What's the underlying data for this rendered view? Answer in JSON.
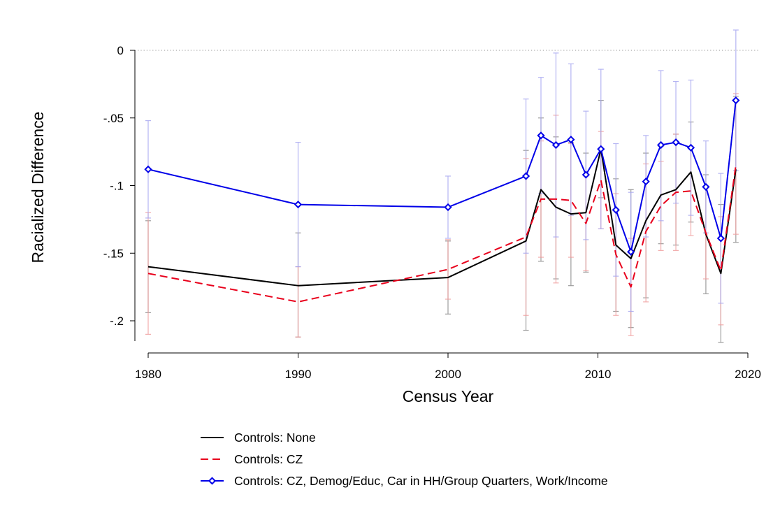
{
  "chart_data": {
    "type": "line",
    "xlabel": "Census Year",
    "ylabel": "Racialized Difference",
    "xlim": [
      1980,
      2020
    ],
    "ylim": [
      -0.22,
      0.0
    ],
    "xticks": [
      1980,
      1990,
      2000,
      2010,
      2020
    ],
    "xtick_labels": [
      "1980",
      "1990",
      "2000",
      "2010",
      "2020"
    ],
    "yticks": [
      0,
      -0.05,
      -0.1,
      -0.15,
      -0.2
    ],
    "ytick_labels": [
      "0",
      "-.05",
      "-.1",
      "-.15",
      "-.2"
    ],
    "reference_line": {
      "y": 0,
      "style": "dotted"
    },
    "legend_position": "bottom",
    "series": [
      {
        "name": "Controls: None",
        "color": "#000000",
        "errorbar_color": "#8c8c8c",
        "line_style": "solid",
        "marker": "none",
        "x": [
          1980,
          1990,
          2000,
          2005.2,
          2006.2,
          2007.2,
          2008.2,
          2009.2,
          2010.2,
          2011.2,
          2012.2,
          2013.2,
          2014.2,
          2015.2,
          2016.2,
          2017.2,
          2018.2,
          2019.2
        ],
        "y": [
          -0.16,
          -0.174,
          -0.168,
          -0.141,
          -0.103,
          -0.116,
          -0.121,
          -0.12,
          -0.073,
          -0.144,
          -0.154,
          -0.126,
          -0.107,
          -0.103,
          -0.09,
          -0.136,
          -0.165,
          -0.088
        ],
        "lower": [
          -0.194,
          -0.212,
          -0.195,
          -0.207,
          -0.156,
          -0.169,
          -0.174,
          -0.164,
          -0.109,
          -0.193,
          -0.205,
          -0.183,
          -0.143,
          -0.144,
          -0.127,
          -0.18,
          -0.216,
          -0.142
        ],
        "upper": [
          -0.126,
          -0.135,
          -0.141,
          -0.074,
          -0.05,
          -0.064,
          -0.068,
          -0.076,
          -0.037,
          -0.095,
          -0.103,
          -0.076,
          -0.071,
          -0.062,
          -0.053,
          -0.092,
          -0.114,
          -0.034
        ]
      },
      {
        "name": "Controls: CZ",
        "color": "#e8001c",
        "errorbar_color": "#f0a0a0",
        "line_style": "dashed",
        "marker": "none",
        "x": [
          1980,
          1990,
          2000,
          2005.2,
          2006.2,
          2007.2,
          2008.2,
          2009.2,
          2010.2,
          2011.2,
          2012.2,
          2013.2,
          2014.2,
          2015.2,
          2016.2,
          2017.2,
          2018.2,
          2019.2
        ],
        "y": [
          -0.165,
          -0.186,
          -0.162,
          -0.138,
          -0.11,
          -0.11,
          -0.111,
          -0.128,
          -0.096,
          -0.151,
          -0.175,
          -0.134,
          -0.115,
          -0.105,
          -0.104,
          -0.135,
          -0.163,
          -0.085
        ],
        "lower": [
          -0.21,
          -0.212,
          -0.184,
          -0.196,
          -0.153,
          -0.172,
          -0.153,
          -0.163,
          -0.132,
          -0.196,
          -0.211,
          -0.186,
          -0.148,
          -0.148,
          -0.137,
          -0.169,
          -0.203,
          -0.136
        ],
        "upper": [
          -0.12,
          -0.16,
          -0.14,
          -0.08,
          -0.067,
          -0.048,
          -0.069,
          -0.093,
          -0.06,
          -0.106,
          -0.139,
          -0.084,
          -0.082,
          -0.062,
          -0.071,
          -0.101,
          -0.123,
          -0.032
        ]
      },
      {
        "name": "Controls: CZ, Demog/Educ, Car in HH/Group Quarters, Work/Income",
        "color": "#0000e8",
        "errorbar_color": "#a8a8f0",
        "line_style": "solid",
        "marker": "diamond",
        "x": [
          1980,
          1990,
          2000,
          2005.2,
          2006.2,
          2007.2,
          2008.2,
          2009.2,
          2010.2,
          2011.2,
          2012.2,
          2013.2,
          2014.2,
          2015.2,
          2016.2,
          2017.2,
          2018.2,
          2019.2
        ],
        "y": [
          -0.088,
          -0.114,
          -0.116,
          -0.093,
          -0.063,
          -0.07,
          -0.066,
          -0.092,
          -0.073,
          -0.118,
          -0.149,
          -0.097,
          -0.07,
          -0.068,
          -0.072,
          -0.101,
          -0.139,
          -0.037
        ],
        "lower": [
          -0.124,
          -0.16,
          -0.139,
          -0.15,
          -0.106,
          -0.138,
          -0.122,
          -0.14,
          -0.132,
          -0.167,
          -0.193,
          -0.138,
          -0.126,
          -0.113,
          -0.122,
          -0.135,
          -0.187,
          -0.089
        ],
        "upper": [
          -0.052,
          -0.068,
          -0.093,
          -0.036,
          -0.02,
          -0.002,
          -0.01,
          -0.045,
          -0.014,
          -0.069,
          -0.105,
          -0.063,
          -0.015,
          -0.023,
          -0.022,
          -0.067,
          -0.091,
          0.015
        ]
      }
    ]
  }
}
